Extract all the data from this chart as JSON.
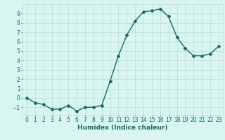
{
  "x": [
    0,
    1,
    2,
    3,
    4,
    5,
    6,
    7,
    8,
    9,
    10,
    11,
    12,
    13,
    14,
    15,
    16,
    17,
    18,
    19,
    20,
    21,
    22,
    23
  ],
  "y": [
    0.0,
    -0.5,
    -0.7,
    -1.2,
    -1.2,
    -0.8,
    -1.4,
    -1.0,
    -1.0,
    -0.8,
    1.8,
    4.5,
    6.7,
    8.2,
    9.2,
    9.3,
    9.5,
    8.7,
    6.5,
    5.3,
    4.5,
    4.5,
    4.7,
    5.5
  ],
  "line_color": "#1a6b5e",
  "marker": "D",
  "markersize": 2.0,
  "linewidth": 1.0,
  "bg_color": "#d9f5f0",
  "grid_color": "#b8ddd8",
  "xlabel": "Humidex (Indice chaleur)",
  "xlim": [
    -0.5,
    23.5
  ],
  "ylim": [
    -1.8,
    10.0
  ],
  "yticks": [
    -1,
    0,
    1,
    2,
    3,
    4,
    5,
    6,
    7,
    8,
    9
  ],
  "xticks": [
    0,
    1,
    2,
    3,
    4,
    5,
    6,
    7,
    8,
    9,
    10,
    11,
    12,
    13,
    14,
    15,
    16,
    17,
    18,
    19,
    20,
    21,
    22,
    23
  ],
  "tick_color": "#1a6b5e",
  "label_color": "#1a6b5e",
  "xlabel_fontsize": 6.5,
  "tick_fontsize": 5.5
}
